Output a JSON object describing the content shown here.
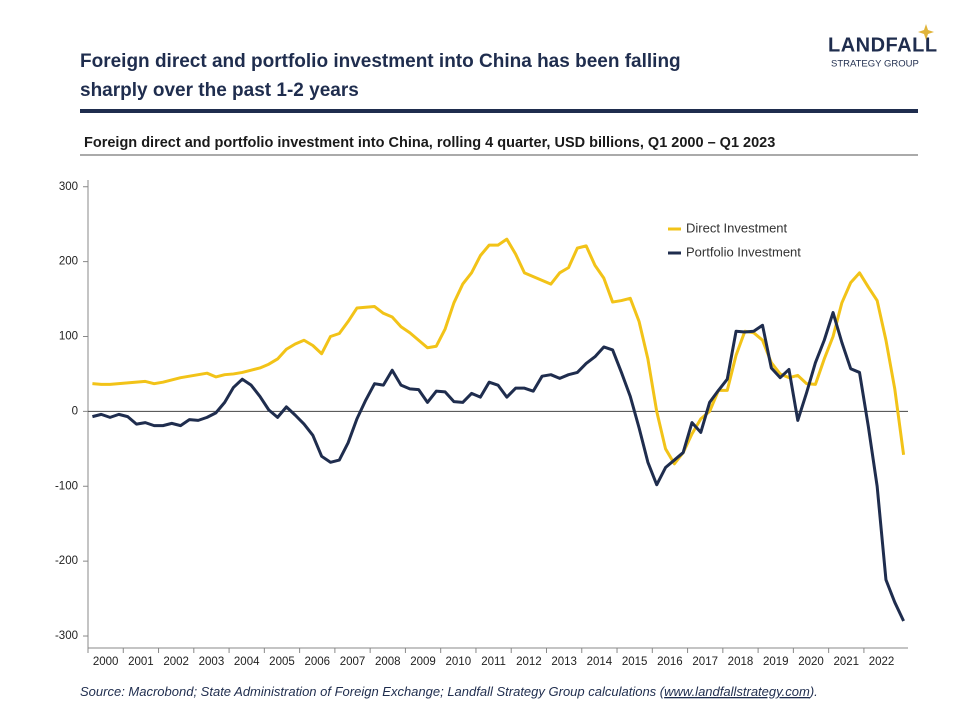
{
  "header": {
    "title_line1": "Foreign direct and portfolio investment into China has been falling",
    "title_line2": "sharply over the past 1-2 years",
    "logo_name": "LANDFALL",
    "logo_sub": "STRATEGY GROUP"
  },
  "chart_data": {
    "type": "line",
    "title": "Foreign direct and portfolio investment into China, rolling 4 quarter, USD billions, Q1 2000 – Q1 2023",
    "categories": [
      "2000",
      null,
      null,
      null,
      "2001",
      null,
      null,
      null,
      "2002",
      null,
      null,
      null,
      "2003",
      null,
      null,
      null,
      "2004",
      null,
      null,
      null,
      "2005",
      null,
      null,
      null,
      "2006",
      null,
      null,
      null,
      "2007",
      null,
      null,
      null,
      "2008",
      null,
      null,
      null,
      "2009",
      null,
      null,
      null,
      "2010",
      null,
      null,
      null,
      "2011",
      null,
      null,
      null,
      "2012",
      null,
      null,
      null,
      "2013",
      null,
      null,
      null,
      "2014",
      null,
      null,
      null,
      "2015",
      null,
      null,
      null,
      "2016",
      null,
      null,
      null,
      "2017",
      null,
      null,
      null,
      "2018",
      null,
      null,
      null,
      "2019",
      null,
      null,
      null,
      "2020",
      null,
      null,
      null,
      "2021",
      null,
      null,
      null,
      "2022",
      null,
      null,
      null,
      null
    ],
    "series": [
      {
        "name": "Direct Investment",
        "color": "#f2c318",
        "values": [
          37,
          36,
          36,
          37,
          38,
          39,
          40,
          37,
          39,
          42,
          45,
          47,
          49,
          51,
          46,
          49,
          50,
          52,
          55,
          58,
          63,
          70,
          83,
          90,
          95,
          88,
          77,
          100,
          104,
          120,
          138,
          139,
          140,
          131,
          126,
          113,
          105,
          95,
          85,
          87,
          110,
          145,
          170,
          185,
          208,
          222,
          222,
          230,
          210,
          185,
          180,
          175,
          170,
          185,
          192,
          218,
          221,
          195,
          178,
          146,
          148,
          151,
          120,
          70,
          0,
          -50,
          -70,
          -55,
          -30,
          -10,
          0,
          28,
          28,
          75,
          107,
          105,
          95,
          65,
          50,
          45,
          48,
          37,
          36,
          70,
          100,
          145,
          172,
          185,
          166,
          148,
          95,
          30,
          -58
        ]
      },
      {
        "name": "Portfolio Investment",
        "color": "#1f2d4e",
        "values": [
          -7,
          -4,
          -8,
          -4,
          -7,
          -17,
          -15,
          -19,
          -19,
          -16,
          -19,
          -11,
          -12,
          -8,
          -2,
          12,
          32,
          43,
          35,
          20,
          2,
          -8,
          6,
          -5,
          -17,
          -32,
          -60,
          -68,
          -65,
          -42,
          -10,
          15,
          37,
          35,
          55,
          35,
          30,
          29,
          12,
          27,
          26,
          13,
          12,
          24,
          19,
          39,
          35,
          19,
          31,
          31,
          27,
          47,
          49,
          44,
          49,
          52,
          64,
          73,
          86,
          82,
          52,
          20,
          -22,
          -68,
          -98,
          -75,
          -65,
          -55,
          -15,
          -28,
          12,
          28,
          43,
          107,
          106,
          107,
          115,
          58,
          45,
          56,
          -12,
          25,
          65,
          95,
          132,
          92,
          57,
          52,
          -20,
          -100,
          -225,
          -255,
          -280
        ]
      }
    ],
    "ylim": [
      -316,
      309
    ],
    "yticks": [
      -300,
      -200,
      -100,
      0,
      100,
      200,
      300
    ],
    "zero_line": true,
    "source_prefix": "Source: Macrobond; State Administration of Foreign Exchange; Landfall Strategy Group calculations (",
    "source_link": "www.landfallstrategy.com",
    "source_suffix": ")."
  }
}
